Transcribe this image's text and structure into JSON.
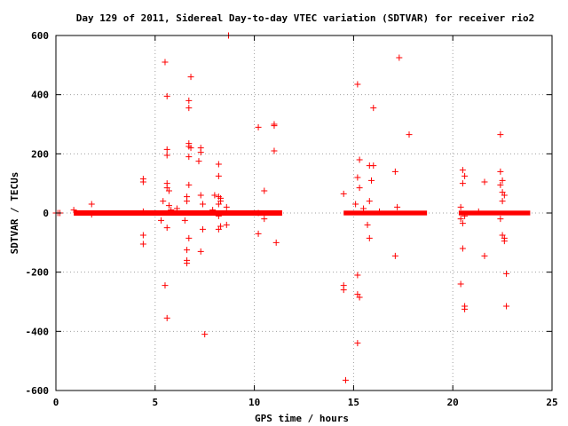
{
  "chart_data": {
    "type": "scatter",
    "title": "Day 129 of 2011, Sidereal Day-to-day VTEC variation (SDTVAR) for receiver rio2",
    "xlabel": "GPS time / hours",
    "ylabel": "SDTVAR / TECUs",
    "xlim": [
      0,
      25
    ],
    "ylim": [
      -600,
      600
    ],
    "x_ticks": [
      0,
      5,
      10,
      15,
      20,
      25
    ],
    "y_ticks": [
      -600,
      -400,
      -200,
      0,
      200,
      400,
      600
    ],
    "grid": true,
    "marker": "plus",
    "series_color": "#ff0000",
    "dense_bands": [
      {
        "x_range": [
          0.9,
          11.4
        ],
        "y_center": 0,
        "y_spread": 6
      },
      {
        "x_range": [
          14.5,
          18.7
        ],
        "y_center": 0,
        "y_spread": 5
      },
      {
        "x_range": [
          20.3,
          23.9
        ],
        "y_center": 0,
        "y_spread": 5
      }
    ],
    "points": [
      [
        0,
        0
      ],
      [
        0.1,
        0
      ],
      [
        0.2,
        0
      ],
      [
        0.9,
        10
      ],
      [
        1.8,
        30
      ],
      [
        1.8,
        -5
      ],
      [
        4.4,
        115
      ],
      [
        4.4,
        105
      ],
      [
        4.4,
        -75
      ],
      [
        4.4,
        -105
      ],
      [
        4.4,
        5
      ],
      [
        5.4,
        40
      ],
      [
        5.3,
        -25
      ],
      [
        5.5,
        510
      ],
      [
        5.6,
        395
      ],
      [
        5.6,
        215
      ],
      [
        5.6,
        195
      ],
      [
        5.6,
        100
      ],
      [
        5.6,
        85
      ],
      [
        5.7,
        75
      ],
      [
        5.6,
        -50
      ],
      [
        5.5,
        -245
      ],
      [
        5.6,
        -355
      ],
      [
        5.7,
        25
      ],
      [
        5.8,
        10
      ],
      [
        6.1,
        15
      ],
      [
        6.5,
        -25
      ],
      [
        6.8,
        460
      ],
      [
        6.7,
        380
      ],
      [
        6.7,
        355
      ],
      [
        6.7,
        235
      ],
      [
        6.7,
        225
      ],
      [
        6.8,
        220
      ],
      [
        6.7,
        190
      ],
      [
        6.7,
        95
      ],
      [
        6.6,
        55
      ],
      [
        6.6,
        40
      ],
      [
        6.7,
        -85
      ],
      [
        6.6,
        -125
      ],
      [
        6.6,
        -160
      ],
      [
        6.6,
        -170
      ],
      [
        7.3,
        220
      ],
      [
        7.3,
        205
      ],
      [
        7.2,
        175
      ],
      [
        7.3,
        60
      ],
      [
        7.4,
        -55
      ],
      [
        7.3,
        -130
      ],
      [
        7.5,
        -410
      ],
      [
        7.4,
        30
      ],
      [
        7.9,
        10
      ],
      [
        8.0,
        60
      ],
      [
        8.2,
        165
      ],
      [
        8.2,
        125
      ],
      [
        8.2,
        55
      ],
      [
        8.3,
        50
      ],
      [
        8.3,
        40
      ],
      [
        8.2,
        30
      ],
      [
        8.2,
        -10
      ],
      [
        8.3,
        -45
      ],
      [
        8.2,
        -55
      ],
      [
        8.7,
        600
      ],
      [
        8.6,
        20
      ],
      [
        8.6,
        -40
      ],
      [
        10.2,
        290
      ],
      [
        10.2,
        0
      ],
      [
        10.2,
        -70
      ],
      [
        10.5,
        75
      ],
      [
        10.5,
        -20
      ],
      [
        11.0,
        300
      ],
      [
        11.0,
        295
      ],
      [
        11.0,
        210
      ],
      [
        11.1,
        -100
      ],
      [
        14.5,
        65
      ],
      [
        14.5,
        -245
      ],
      [
        14.5,
        -260
      ],
      [
        14.6,
        -565
      ],
      [
        15.2,
        435
      ],
      [
        15.3,
        180
      ],
      [
        15.2,
        120
      ],
      [
        15.3,
        85
      ],
      [
        15.1,
        30
      ],
      [
        15.2,
        -210
      ],
      [
        15.2,
        -275
      ],
      [
        15.3,
        -285
      ],
      [
        15.2,
        -440
      ],
      [
        15.5,
        15
      ],
      [
        15.8,
        160
      ],
      [
        15.8,
        40
      ],
      [
        15.7,
        -40
      ],
      [
        15.8,
        -85
      ],
      [
        16.0,
        355
      ],
      [
        16.0,
        160
      ],
      [
        15.9,
        110
      ],
      [
        16.3,
        5
      ],
      [
        17.3,
        525
      ],
      [
        17.1,
        140
      ],
      [
        17.2,
        20
      ],
      [
        17.1,
        -145
      ],
      [
        17.8,
        265
      ],
      [
        20.4,
        20
      ],
      [
        20.4,
        -20
      ],
      [
        20.5,
        145
      ],
      [
        20.6,
        125
      ],
      [
        20.5,
        100
      ],
      [
        20.5,
        -35
      ],
      [
        20.5,
        -120
      ],
      [
        20.4,
        -240
      ],
      [
        20.6,
        -315
      ],
      [
        20.6,
        -325
      ],
      [
        20.6,
        -10
      ],
      [
        21.3,
        5
      ],
      [
        21.6,
        -145
      ],
      [
        21.6,
        105
      ],
      [
        22.4,
        265
      ],
      [
        22.4,
        140
      ],
      [
        22.5,
        110
      ],
      [
        22.4,
        95
      ],
      [
        22.5,
        70
      ],
      [
        22.6,
        60
      ],
      [
        22.5,
        40
      ],
      [
        22.4,
        -20
      ],
      [
        22.5,
        -75
      ],
      [
        22.6,
        -85
      ],
      [
        22.6,
        -95
      ],
      [
        22.7,
        -205
      ],
      [
        22.7,
        -315
      ]
    ]
  }
}
